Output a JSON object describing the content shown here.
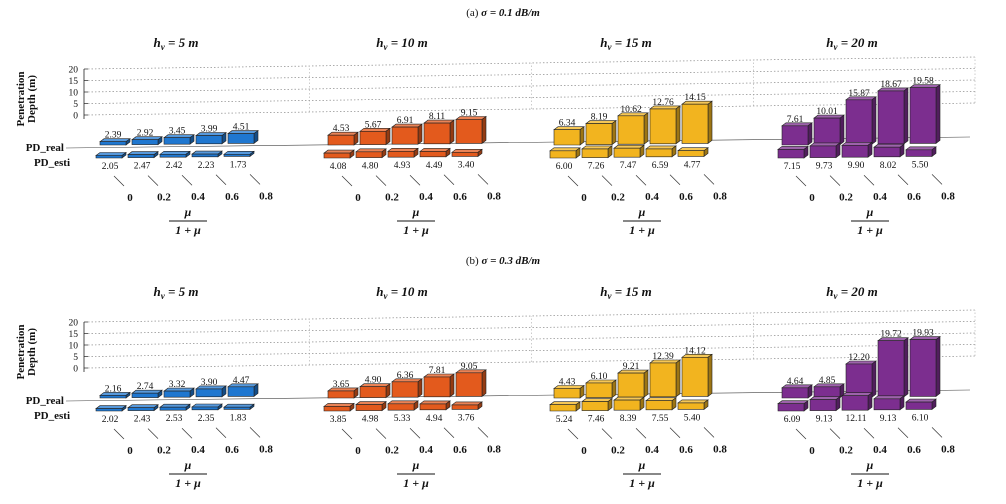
{
  "chart_data": {
    "type": "bar",
    "colors": [
      "#1f77d0",
      "#e35a1d",
      "#f2b41f",
      "#7c2e8f"
    ],
    "panels": [
      {
        "label": "(a)",
        "sigma_text": "σ = 0.1 dB/m",
        "ylabel_line1": "Penetration",
        "ylabel_line2": "Depth (m)",
        "yticks": [
          "20",
          "15",
          "10",
          "5",
          "0"
        ],
        "ylim": [
          0,
          20
        ],
        "row_labels": [
          "PD_real",
          "PD_esti"
        ],
        "groups": [
          {
            "title": "h_v = 5 m",
            "hv": "5",
            "categories": [
              "0",
              "0.2",
              "0.4",
              "0.6",
              "0.8"
            ],
            "series": [
              {
                "name": "PD_real",
                "values": [
                  2.39,
                  2.92,
                  3.45,
                  3.99,
                  4.51
                ]
              },
              {
                "name": "PD_esti",
                "values": [
                  2.05,
                  2.47,
                  2.42,
                  2.23,
                  1.73
                ]
              }
            ],
            "real_labels": [
              "2.39",
              "2.92",
              "3.45",
              "3.99",
              "4.51"
            ],
            "esti_labels": [
              "2.05",
              "2.47",
              "2.42",
              "2.23",
              "1.73"
            ]
          },
          {
            "title": "h_v = 10 m",
            "hv": "10",
            "categories": [
              "0",
              "0.2",
              "0.4",
              "0.6",
              "0.8"
            ],
            "series": [
              {
                "name": "PD_real",
                "values": [
                  4.53,
                  5.67,
                  6.91,
                  8.11,
                  9.15
                ]
              },
              {
                "name": "PD_esti",
                "values": [
                  4.08,
                  4.8,
                  4.93,
                  4.49,
                  3.4
                ]
              }
            ],
            "real_labels": [
              "4.53",
              "5.67",
              "6.91",
              "8.11",
              "9.15"
            ],
            "esti_labels": [
              "4.08",
              "4.80",
              "4.93",
              "4.49",
              "3.40"
            ]
          },
          {
            "title": "h_v = 15 m",
            "hv": "15",
            "categories": [
              "0",
              "0.2",
              "0.4",
              "0.6",
              "0.8"
            ],
            "series": [
              {
                "name": "PD_real",
                "values": [
                  6.34,
                  8.19,
                  10.62,
                  12.76,
                  14.15
                ]
              },
              {
                "name": "PD_esti",
                "values": [
                  6.0,
                  7.26,
                  7.47,
                  6.59,
                  4.77
                ]
              }
            ],
            "real_labels": [
              "6.34",
              "8.19",
              "10.62",
              "12.76",
              "14.15"
            ],
            "esti_labels": [
              "6.00",
              "7.26",
              "7.47",
              "6.59",
              "4.77"
            ]
          },
          {
            "title": "h_v = 20 m",
            "hv": "20",
            "categories": [
              "0",
              "0.2",
              "0.4",
              "0.6",
              "0.8"
            ],
            "series": [
              {
                "name": "PD_real",
                "values": [
                  7.61,
                  10.01,
                  15.87,
                  18.67,
                  19.58
                ]
              },
              {
                "name": "PD_esti",
                "values": [
                  7.15,
                  9.73,
                  9.9,
                  8.02,
                  5.5
                ]
              }
            ],
            "real_labels": [
              "7.61",
              "10.01",
              "15.87",
              "18.67",
              "19.58"
            ],
            "esti_labels": [
              "7.15",
              "9.73",
              "9.90",
              "8.02",
              "5.50"
            ]
          }
        ]
      },
      {
        "label": "(b)",
        "sigma_text": "σ = 0.3 dB/m",
        "ylabel_line1": "Penetration",
        "ylabel_line2": "Depth (m)",
        "yticks": [
          "20",
          "15",
          "10",
          "5",
          "0"
        ],
        "ylim": [
          0,
          20
        ],
        "row_labels": [
          "PD_real",
          "PD_esti"
        ],
        "groups": [
          {
            "title": "h_v = 5 m",
            "hv": "5",
            "categories": [
              "0",
              "0.2",
              "0.4",
              "0.6",
              "0.8"
            ],
            "series": [
              {
                "name": "PD_real",
                "values": [
                  2.16,
                  2.74,
                  3.32,
                  3.9,
                  4.47
                ]
              },
              {
                "name": "PD_esti",
                "values": [
                  2.02,
                  2.43,
                  2.53,
                  2.35,
                  1.83
                ]
              }
            ],
            "real_labels": [
              "2.16",
              "2.74",
              "3.32",
              "3.90",
              "4.47"
            ],
            "esti_labels": [
              "2.02",
              "2.43",
              "2.53",
              "2.35",
              "1.83"
            ]
          },
          {
            "title": "h_v = 10 m",
            "hv": "10",
            "categories": [
              "0",
              "0.2",
              "0.4",
              "0.6",
              "0.8"
            ],
            "series": [
              {
                "name": "PD_real",
                "values": [
                  3.65,
                  4.9,
                  6.36,
                  7.81,
                  9.05
                ]
              },
              {
                "name": "PD_esti",
                "values": [
                  3.85,
                  4.98,
                  5.33,
                  4.94,
                  3.76
                ]
              }
            ],
            "real_labels": [
              "3.65",
              "4.90",
              "6.36",
              "7.81",
              "9.05"
            ],
            "esti_labels": [
              "3.85",
              "4.98",
              "5.33",
              "4.94",
              "3.76"
            ]
          },
          {
            "title": "h_v = 15 m",
            "hv": "15",
            "categories": [
              "0",
              "0.2",
              "0.4",
              "0.6",
              "0.8"
            ],
            "series": [
              {
                "name": "PD_real",
                "values": [
                  4.43,
                  6.1,
                  9.21,
                  12.39,
                  14.12
                ]
              },
              {
                "name": "PD_esti",
                "values": [
                  5.24,
                  7.46,
                  8.39,
                  7.55,
                  5.4
                ]
              }
            ],
            "real_labels": [
              "4.43",
              "6.10",
              "9.21",
              "12.39",
              "14.12"
            ],
            "esti_labels": [
              "5.24",
              "7.46",
              "8.39",
              "7.55",
              "5.40"
            ]
          },
          {
            "title": "h_v = 20 m",
            "hv": "20",
            "categories": [
              "0",
              "0.2",
              "0.4",
              "0.6",
              "0.8"
            ],
            "series": [
              {
                "name": "PD_real",
                "values": [
                  4.64,
                  4.85,
                  12.2,
                  19.72,
                  19.93
                ]
              },
              {
                "name": "PD_esti",
                "values": [
                  6.09,
                  9.13,
                  12.11,
                  9.13,
                  6.1
                ]
              }
            ],
            "real_labels": [
              "4.64",
              "4.85",
              "12.20",
              "19.72",
              "19.93"
            ],
            "esti_labels": [
              "6.09",
              "9.13",
              "12.11",
              "9.13",
              "6.10"
            ]
          }
        ]
      }
    ],
    "xlabel_numerator": "μ",
    "xlabel_denominator": "1 + μ"
  }
}
